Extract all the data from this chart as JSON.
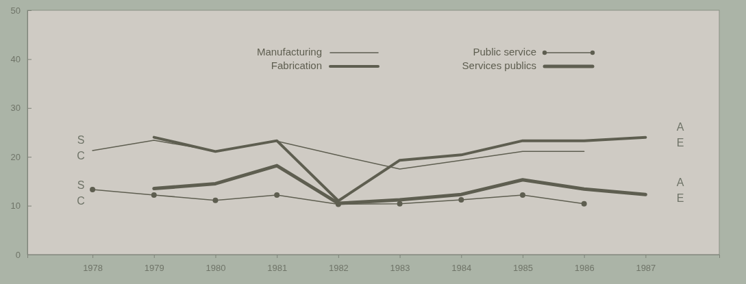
{
  "chart_data": {
    "type": "line",
    "x": [
      1978,
      1979,
      1980,
      1981,
      1982,
      1983,
      1984,
      1985,
      1986,
      1987
    ],
    "xlim": [
      1976.94,
      1988.2
    ],
    "xticks": [
      1978,
      1979,
      1980,
      1981,
      1982,
      1983,
      1984,
      1985,
      1986,
      1987
    ],
    "ylim": [
      0,
      50
    ],
    "yticks": [
      0,
      10,
      20,
      30,
      40,
      50
    ],
    "grid": false,
    "legend": "top",
    "series": [
      {
        "name": "Manufacturing",
        "color": "#5e5e50",
        "values": [
          21.3,
          23.4,
          21.2,
          23.2,
          20.3,
          17.5,
          19.3,
          21.1,
          21.1,
          null
        ]
      },
      {
        "name": "Fabrication",
        "color": "#5e5e50",
        "values": [
          null,
          24.0,
          21.1,
          23.3,
          11.0,
          19.3,
          20.4,
          23.3,
          23.3,
          24.0
        ]
      },
      {
        "name": "Public service",
        "color": "#5e5e50",
        "marker": "circle",
        "values": [
          13.3,
          12.2,
          11.1,
          12.2,
          10.3,
          10.4,
          11.2,
          12.2,
          10.4,
          null
        ]
      },
      {
        "name": "Services publics",
        "color": "#5e5e50",
        "values": [
          null,
          13.5,
          14.5,
          18.2,
          10.5,
          11.2,
          12.3,
          15.3,
          13.4,
          12.3
        ]
      }
    ],
    "annotations": [
      "S",
      "C",
      "S",
      "C",
      "A",
      "E",
      "A",
      "E"
    ]
  }
}
